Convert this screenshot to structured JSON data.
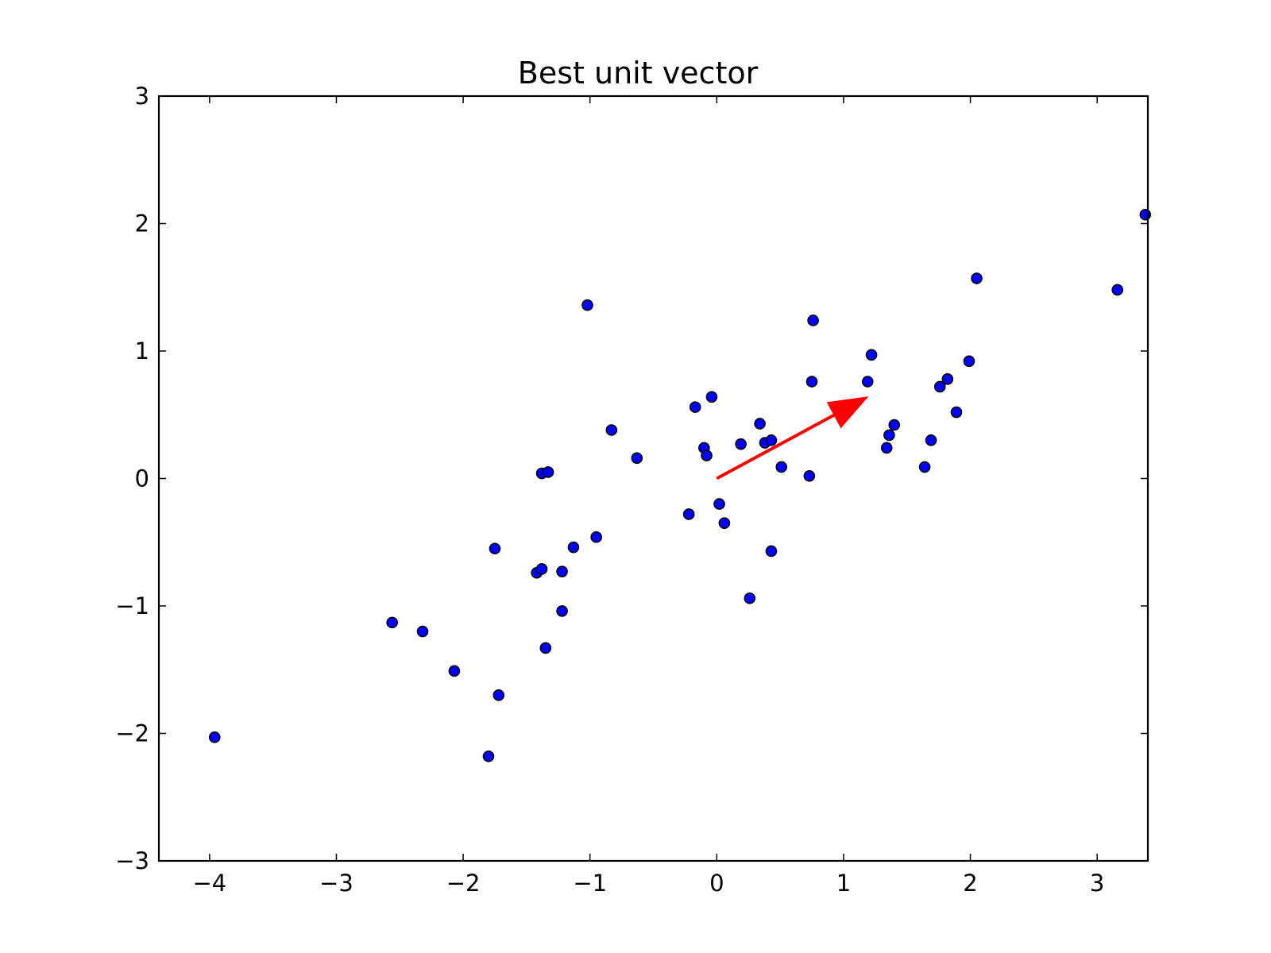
{
  "chart_data": {
    "type": "scatter",
    "title": "Best unit vector",
    "xlabel": "",
    "ylabel": "",
    "xlim": [
      -4.4,
      3.4
    ],
    "ylim": [
      -3,
      3
    ],
    "xticks": [
      -4,
      -3,
      -2,
      -1,
      0,
      1,
      2,
      3
    ],
    "yticks": [
      -3,
      -2,
      -1,
      0,
      1,
      2,
      3
    ],
    "xtick_labels": [
      "−4",
      "−3",
      "−2",
      "−1",
      "0",
      "1",
      "2",
      "3"
    ],
    "ytick_labels": [
      "−3",
      "−2",
      "−1",
      "0",
      "1",
      "2",
      "3"
    ],
    "grid": false,
    "marker_color": "#0000ff",
    "marker_edge_color": "#000000",
    "arrow_color": "#ff0000",
    "arrow": {
      "from": [
        0,
        0
      ],
      "to": [
        1.19,
        0.64
      ]
    },
    "points": [
      [
        -3.96,
        -2.03
      ],
      [
        -2.56,
        -1.13
      ],
      [
        -2.32,
        -1.2
      ],
      [
        -2.07,
        -1.51
      ],
      [
        -1.8,
        -2.18
      ],
      [
        -1.75,
        -0.55
      ],
      [
        -1.72,
        -1.7
      ],
      [
        -1.42,
        -0.74
      ],
      [
        -1.38,
        -0.71
      ],
      [
        -1.38,
        0.04
      ],
      [
        -1.33,
        0.05
      ],
      [
        -1.35,
        -1.33
      ],
      [
        -1.22,
        -0.73
      ],
      [
        -1.22,
        -1.04
      ],
      [
        -1.13,
        -0.54
      ],
      [
        -1.02,
        1.36
      ],
      [
        -0.95,
        -0.46
      ],
      [
        -0.83,
        0.38
      ],
      [
        -0.63,
        0.16
      ],
      [
        -0.22,
        -0.28
      ],
      [
        -0.17,
        0.56
      ],
      [
        -0.1,
        0.24
      ],
      [
        -0.08,
        0.18
      ],
      [
        -0.04,
        0.64
      ],
      [
        0.02,
        -0.2
      ],
      [
        0.06,
        -0.35
      ],
      [
        0.19,
        0.27
      ],
      [
        0.26,
        -0.94
      ],
      [
        0.34,
        0.43
      ],
      [
        0.38,
        0.28
      ],
      [
        0.43,
        0.3
      ],
      [
        0.43,
        -0.57
      ],
      [
        0.51,
        0.09
      ],
      [
        0.73,
        0.02
      ],
      [
        0.75,
        0.76
      ],
      [
        0.76,
        1.24
      ],
      [
        1.19,
        0.76
      ],
      [
        1.22,
        0.97
      ],
      [
        1.34,
        0.24
      ],
      [
        1.36,
        0.34
      ],
      [
        1.4,
        0.42
      ],
      [
        1.64,
        0.09
      ],
      [
        1.69,
        0.3
      ],
      [
        1.76,
        0.72
      ],
      [
        1.82,
        0.78
      ],
      [
        1.89,
        0.52
      ],
      [
        1.99,
        0.92
      ],
      [
        2.05,
        1.57
      ],
      [
        3.16,
        1.48
      ],
      [
        3.38,
        2.07
      ]
    ]
  }
}
